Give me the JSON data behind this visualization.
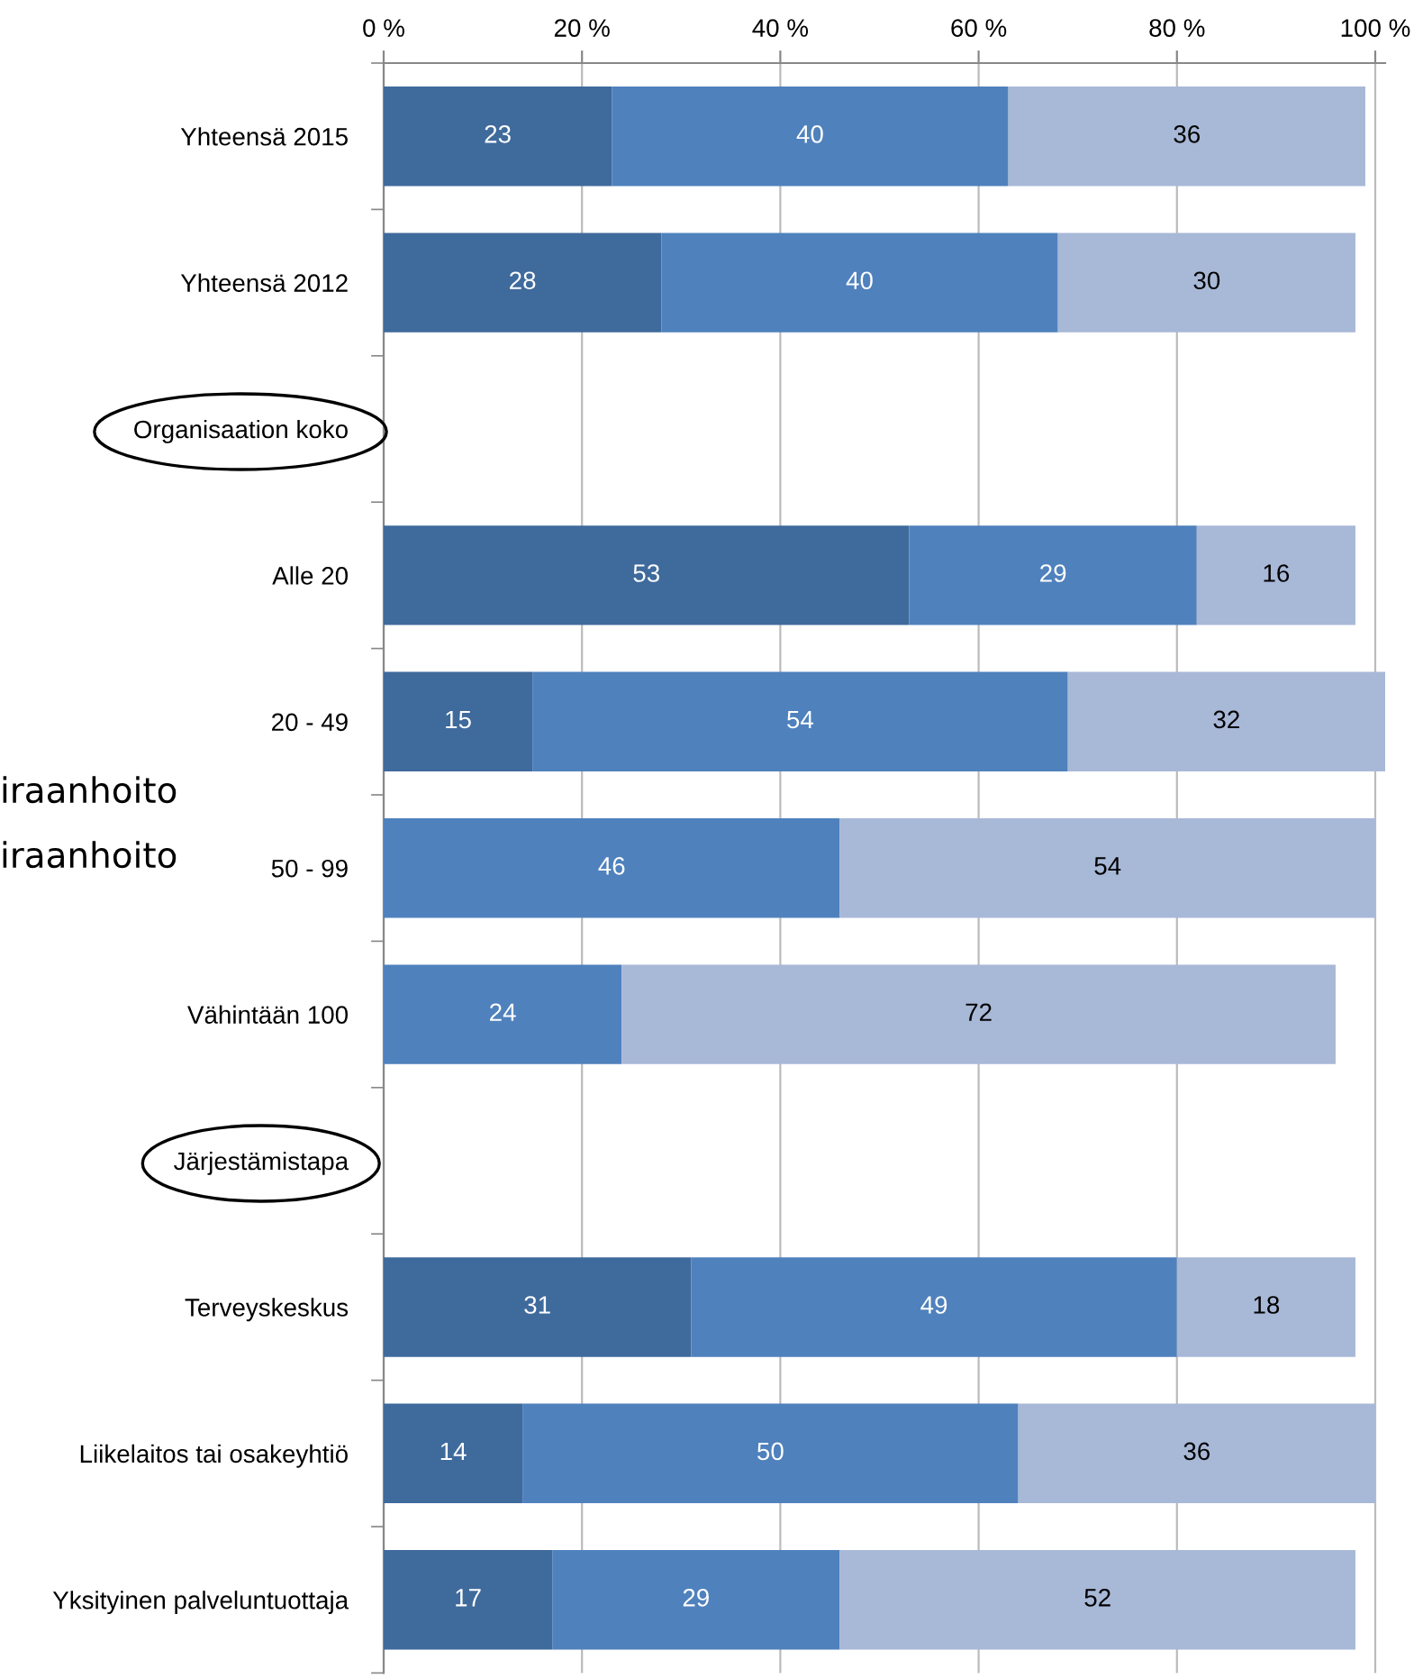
{
  "chart_data": {
    "type": "bar",
    "orientation": "horizontal",
    "stacked": true,
    "data_labels": true,
    "grid": "x",
    "legend": false,
    "categories": [
      "Yhteensä 2015",
      "Yhteensä 2012",
      "Organisaation koko",
      "Alle 20",
      "20 - 49",
      "50 - 99",
      "Vähintään 100",
      "Järjestämistapa",
      "Terveyskeskus",
      "Liikelaitos tai osakeyhtiö",
      "Yksityinen palveluntuottaja"
    ],
    "series": [
      {
        "color": "#3f6a9c",
        "values": [
          23,
          28,
          null,
          53,
          15,
          null,
          null,
          null,
          31,
          14,
          17
        ]
      },
      {
        "color": "#4f81bd",
        "values": [
          40,
          40,
          null,
          29,
          54,
          46,
          24,
          null,
          49,
          50,
          29
        ]
      },
      {
        "color": "#a8b8d7",
        "values": [
          36,
          30,
          null,
          16,
          32,
          54,
          72,
          null,
          18,
          36,
          52
        ]
      }
    ],
    "xlim": [
      0,
      101
    ],
    "xticks": [
      {
        "value": 0,
        "label": "0 %"
      },
      {
        "value": 20,
        "label": "20 %"
      },
      {
        "value": 40,
        "label": "40 %"
      },
      {
        "value": 60,
        "label": "60 %"
      },
      {
        "value": 80,
        "label": "80 %"
      },
      {
        "value": 100,
        "label": "100 %"
      }
    ],
    "annotations": [
      "iraanhoito",
      "iraanhoito"
    ]
  }
}
